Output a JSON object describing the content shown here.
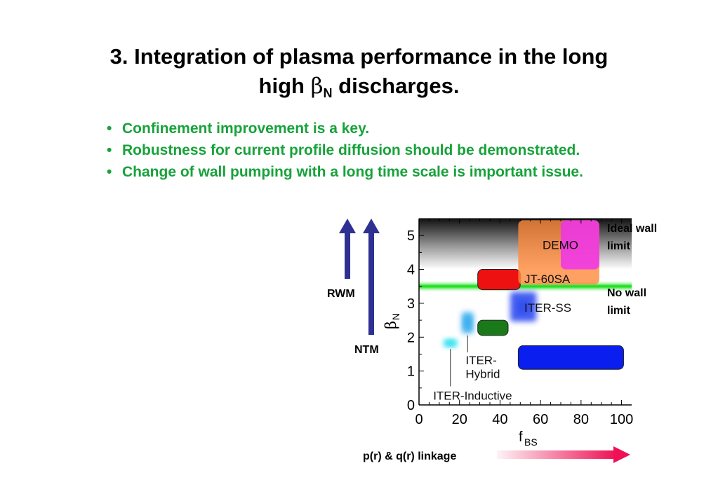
{
  "title": {
    "line1": "3. Integration of plasma performance in the long",
    "line2_prefix": "high ",
    "line2_symbol": "β",
    "line2_sub": "N",
    "line2_suffix": " discharges."
  },
  "bullets": [
    "Confinement improvement is a key.",
    "Robustness for current profile diffusion should be demonstrated.",
    "Change of wall pumping with a long time scale is important issue."
  ],
  "bullet_char": "•",
  "figure": {
    "rwm_label": "RWM",
    "ntm_label": "NTM",
    "ideal_wall_label": [
      "Ideal wall",
      "limit"
    ],
    "no_wall_label": [
      "No wall",
      "limit"
    ],
    "linkage_label": "p(r) & q(r) linkage",
    "colors": {
      "arrows": "#2e3192",
      "ideal_band": "#000000",
      "no_wall_line": "#22e022",
      "linkage_arrow": "#ee1155"
    }
  },
  "chart_data": {
    "type": "scatter",
    "xlabel": "f",
    "xlabel_sub": "BS",
    "ylabel": "β",
    "ylabel_sub": "N",
    "xlim": [
      0,
      105
    ],
    "ylim": [
      0,
      5.5
    ],
    "xticks": [
      0,
      20,
      40,
      60,
      80,
      100
    ],
    "yticks": [
      0,
      1,
      2,
      3,
      4,
      5
    ],
    "ideal_wall_limit_range": [
      4.0,
      5.5
    ],
    "no_wall_limit": 3.5,
    "regions": [
      {
        "label": "",
        "x": [
          29,
          50
        ],
        "y": [
          3.4,
          4.0
        ],
        "color": "#ee1111",
        "shape": "rect"
      },
      {
        "label": "",
        "x": [
          29,
          44
        ],
        "y": [
          2.05,
          2.5
        ],
        "color": "#1a7a1a",
        "shape": "rect"
      },
      {
        "label": "",
        "x": [
          49,
          101
        ],
        "y": [
          1.05,
          1.75
        ],
        "color": "#0a1ef0",
        "shape": "rect"
      },
      {
        "label": "",
        "x": [
          11,
          20
        ],
        "y": [
          1.65,
          2.0
        ],
        "color": "#33e0f0",
        "shape": "glow"
      },
      {
        "label": "",
        "x": [
          20,
          28
        ],
        "y": [
          2.05,
          2.8
        ],
        "color": "#3aaef0",
        "shape": "glow"
      },
      {
        "label": "",
        "x": [
          44,
          59
        ],
        "y": [
          2.4,
          3.4
        ],
        "color": "#3050f0",
        "shape": "glow"
      },
      {
        "label": "",
        "x": [
          49,
          89
        ],
        "y": [
          3.55,
          5.45
        ],
        "color": "#ff8a3c",
        "shape": "rect"
      },
      {
        "label": "",
        "x": [
          70,
          89
        ],
        "y": [
          4.0,
          5.45
        ],
        "color": "#ee33ee",
        "shape": "rect"
      }
    ],
    "annotations": [
      {
        "text": "DEMO",
        "x": 61,
        "y": 4.6
      },
      {
        "text": "JT-60SA",
        "x": 52,
        "y": 3.6
      },
      {
        "text": "ITER-SS",
        "x": 52,
        "y": 2.75
      },
      {
        "text": "ITER-",
        "x": 23,
        "y": 1.2
      },
      {
        "text": "Hybrid",
        "x": 23,
        "y": 0.8
      },
      {
        "text": "ITER-Inductive",
        "x": 7,
        "y": 0.15
      }
    ]
  }
}
